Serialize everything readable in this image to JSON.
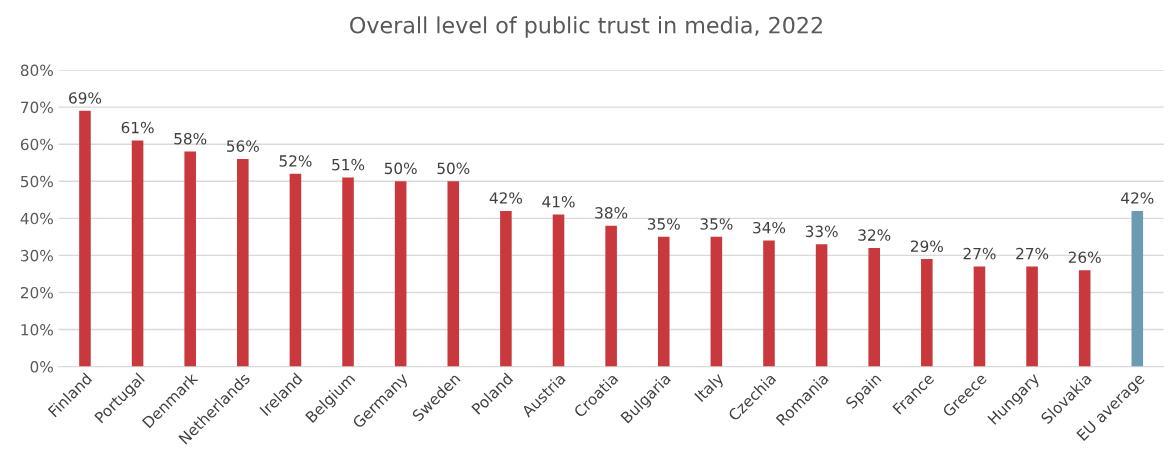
{
  "chart_data": {
    "type": "bar",
    "title": "Overall level of public trust in media, 2022",
    "categories": [
      "Finland",
      "Portugal",
      "Denmark",
      "Netherlands",
      "Ireland",
      "Belgium",
      "Germany",
      "Sweden",
      "Poland",
      "Austria",
      "Croatia",
      "Bulgaria",
      "Italy",
      "Czechia",
      "Romania",
      "Spain",
      "France",
      "Greece",
      "Hungary",
      "Slovakia",
      "EU average"
    ],
    "values": [
      69,
      61,
      58,
      56,
      52,
      51,
      50,
      50,
      42,
      41,
      38,
      35,
      35,
      34,
      33,
      32,
      29,
      27,
      27,
      26,
      42
    ],
    "colors": [
      "#c9383c",
      "#c9383c",
      "#c9383c",
      "#c9383c",
      "#c9383c",
      "#c9383c",
      "#c9383c",
      "#c9383c",
      "#c9383c",
      "#c9383c",
      "#c9383c",
      "#c9383c",
      "#c9383c",
      "#c9383c",
      "#c9383c",
      "#c9383c",
      "#c9383c",
      "#c9383c",
      "#c9383c",
      "#c9383c",
      "#6b9bb0"
    ],
    "value_labels": [
      "69%",
      "61%",
      "58%",
      "56%",
      "52%",
      "51%",
      "50%",
      "50%",
      "42%",
      "41%",
      "38%",
      "35%",
      "35%",
      "34%",
      "33%",
      "32%",
      "29%",
      "27%",
      "27%",
      "26%",
      "42%"
    ],
    "ylim": [
      0,
      80
    ],
    "yticks": [
      {
        "value": 0,
        "label": "0%"
      },
      {
        "value": 10,
        "label": "10%"
      },
      {
        "value": 20,
        "label": "20%"
      },
      {
        "value": 30,
        "label": "30%"
      },
      {
        "value": 40,
        "label": "40%"
      },
      {
        "value": 50,
        "label": "50%"
      },
      {
        "value": 60,
        "label": "60%"
      },
      {
        "value": 70,
        "label": "70%"
      },
      {
        "value": 80,
        "label": "80%"
      }
    ],
    "grid": "y",
    "legend": false
  }
}
